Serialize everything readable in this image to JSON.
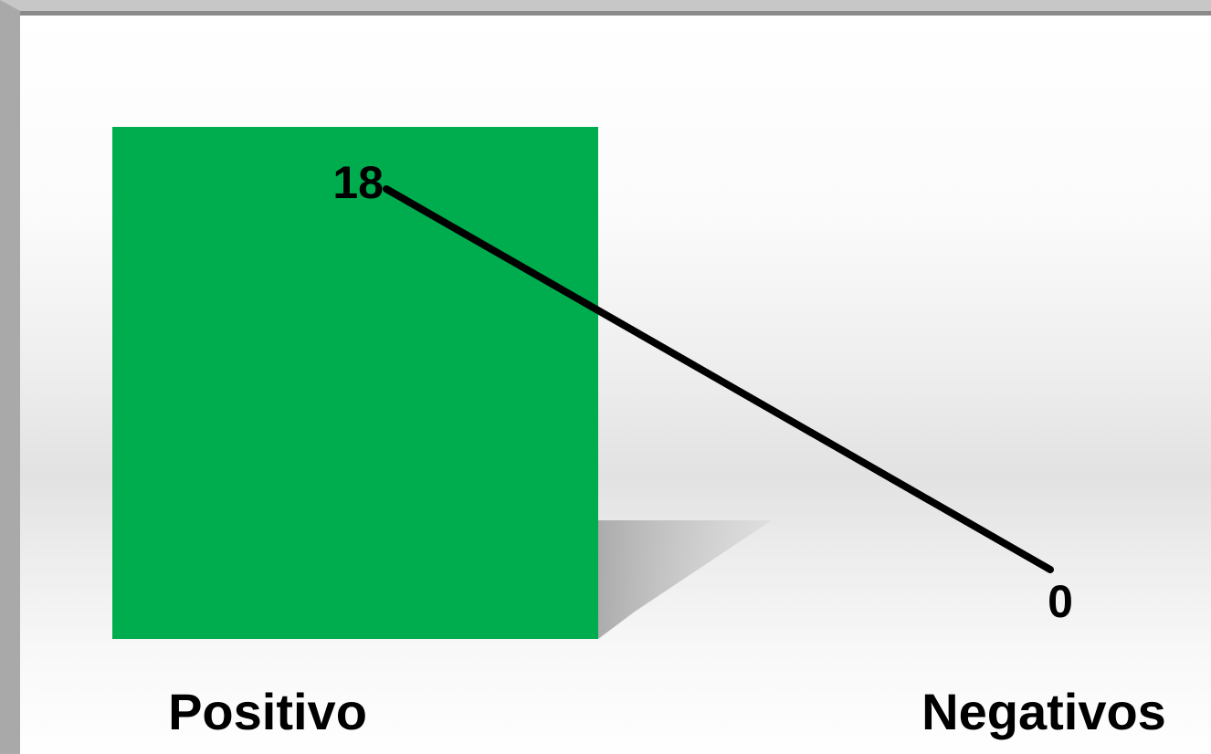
{
  "chart_data": {
    "type": "bar",
    "categories": [
      "Positivo",
      "Negativos"
    ],
    "values": [
      18,
      0
    ],
    "value_labels": [
      "18",
      "0"
    ],
    "title": "",
    "xlabel": "",
    "ylabel": "",
    "ylim": [
      0,
      18
    ],
    "grid": false,
    "legend": "none",
    "overlay_line": true,
    "colors": {
      "bar": "#00ad4e",
      "shadow": "#b8b8b8",
      "line": "#000000"
    }
  }
}
